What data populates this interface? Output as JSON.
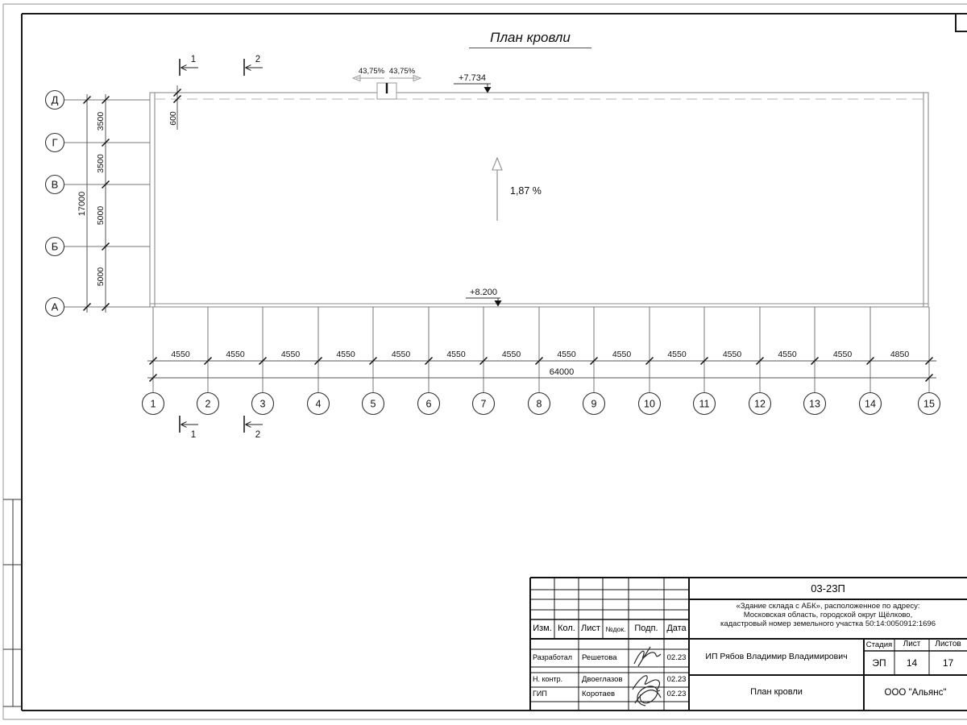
{
  "page": {
    "title": "План кровли"
  },
  "plan": {
    "slope_label": "1,87 %",
    "slope_left": "43,75%",
    "slope_right": "43,75%",
    "elevation_top": "+7.734",
    "elevation_bottom": "+8.200",
    "offset_600": "600",
    "section_markers": [
      "1",
      "2"
    ],
    "rows": [
      "Д",
      "Г",
      "В",
      "Б",
      "А"
    ],
    "row_dims": [
      "3500",
      "3500",
      "5000",
      "5000"
    ],
    "row_total": "17000",
    "columns": [
      "1",
      "2",
      "3",
      "4",
      "5",
      "6",
      "7",
      "8",
      "9",
      "10",
      "11",
      "12",
      "13",
      "14",
      "15"
    ],
    "col_dims": [
      "4550",
      "4550",
      "4550",
      "4550",
      "4550",
      "4550",
      "4550",
      "4550",
      "4550",
      "4550",
      "4550",
      "4550",
      "4550",
      "4850"
    ],
    "col_total": "64000"
  },
  "title_block": {
    "doc_number": "03-23П",
    "address_lines": [
      "«Здание склада с АБК», расположенное по адресу:",
      "Московская область, городской округ Щёлково,",
      "кадастровый номер земельного участка 50:14:0050912:1696"
    ],
    "header_cols": [
      "Изм.",
      "Кол.",
      "Лист",
      "№док.",
      "Подп.",
      "Дата"
    ],
    "sign_rows": [
      {
        "role": "Разработал",
        "name": "Решетова",
        "date": "02.23"
      },
      {
        "role": "Н. контр.",
        "name": "Двоеглазов",
        "date": "02.23"
      },
      {
        "role": "ГИП",
        "name": "Коротаев",
        "date": "02.23"
      }
    ],
    "client": "ИП Рябов Владимир Владимирович",
    "stage_label": "Стадия",
    "sheet_label": "Лист",
    "sheets_label": "Листов",
    "stage": "ЭП",
    "sheet": "14",
    "sheets": "17",
    "sheet_title": "План кровли",
    "organization": "ООО \"Альянс\""
  }
}
